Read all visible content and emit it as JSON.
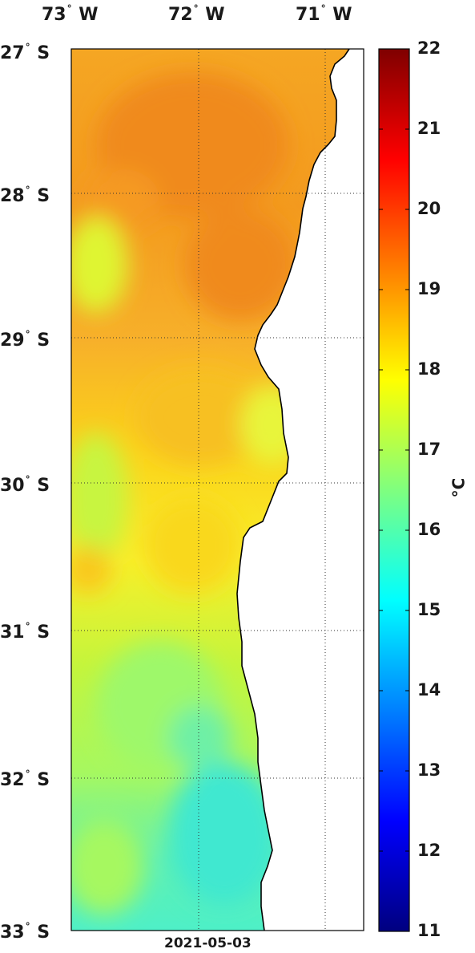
{
  "map": {
    "date": "2021-05-03",
    "lon_labels": [
      {
        "deg": "73",
        "hemi": "W"
      },
      {
        "deg": "72",
        "hemi": "W"
      },
      {
        "deg": "71",
        "hemi": "W"
      }
    ],
    "lat_labels": [
      {
        "deg": "27",
        "hemi": "S"
      },
      {
        "deg": "28",
        "hemi": "S"
      },
      {
        "deg": "29",
        "hemi": "S"
      },
      {
        "deg": "30",
        "hemi": "S"
      },
      {
        "deg": "31",
        "hemi": "S"
      },
      {
        "deg": "32",
        "hemi": "S"
      },
      {
        "deg": "33",
        "hemi": "S"
      }
    ],
    "degree_symbol": "°",
    "colorbar": {
      "ticks": [
        "22",
        "21",
        "20",
        "19",
        "18",
        "17",
        "16",
        "15",
        "14",
        "13",
        "12",
        "11"
      ],
      "unit": "°C",
      "range": [
        11,
        22
      ]
    },
    "colors": {
      "land": "#ffffff",
      "coastline": "#000000"
    }
  }
}
